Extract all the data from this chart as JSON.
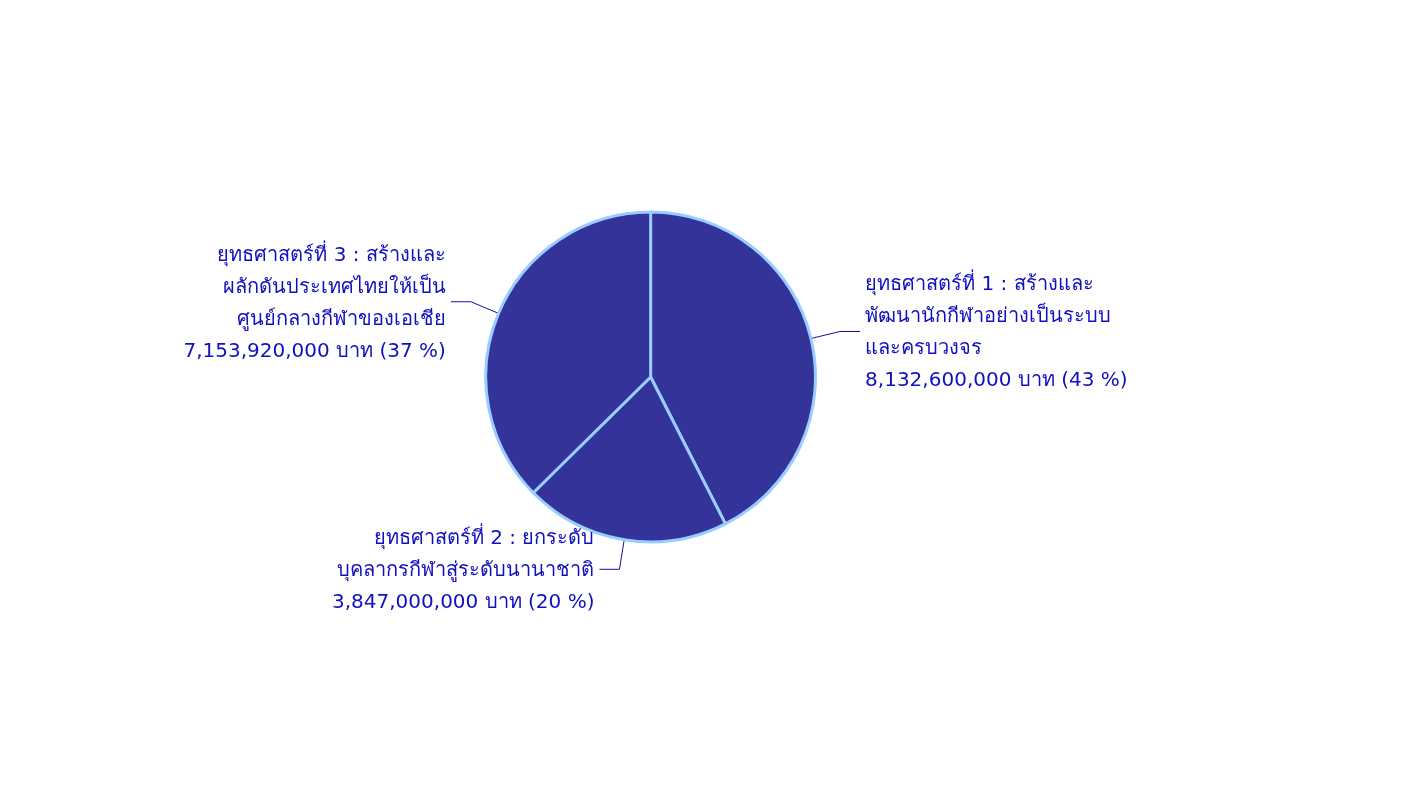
{
  "chart_data": {
    "type": "pie",
    "categories": [
      "ยุทธศาสตร์ที่ 1 : สร้างและ\nพัฒนานักกีฬาอย่างเป็นระบบ\nและครบวงจร",
      "ยุทธศาสตร์ที่ 2 : ยกระดับ\nบุคลากรกีฬาสู่ระดับนานาชาติ",
      "ยุทธศาสตร์ที่ 3 : สร้างและ\nผลักดันประเทศไทยให้เป็น\nศูนย์กลางกีฬาของเอเชีย"
    ],
    "values": [
      8132600000,
      3847000000,
      7153920000
    ],
    "value_labels": [
      "8,132,600,000 บาท (43 %)",
      "3,847,000,000 บาท (20 %)",
      "7,153,920,000 บาท (37 %)"
    ],
    "colors": [
      "#333399",
      "#333399",
      "#333399"
    ],
    "legend": false
  }
}
